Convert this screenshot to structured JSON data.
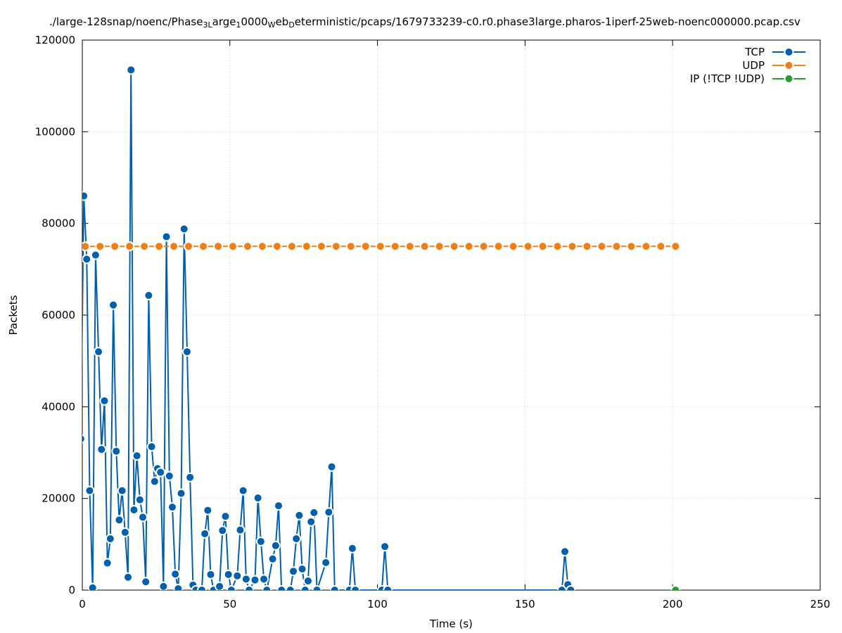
{
  "chart_data": {
    "type": "line",
    "title": {
      "segments": [
        {
          "t": "./large-128snap/noenc/Phase",
          "sub": false
        },
        {
          "t": "3L",
          "sub": true
        },
        {
          "t": "arge",
          "sub": false
        },
        {
          "t": "1",
          "sub": true
        },
        {
          "t": "0000",
          "sub": false
        },
        {
          "t": "W",
          "sub": true
        },
        {
          "t": "eb",
          "sub": false
        },
        {
          "t": "D",
          "sub": true
        },
        {
          "t": "eterministic/pcaps/1679733239-c0.r0.phase3large.pharos-1iperf-25web-noenc000000.pcap.csv",
          "sub": false
        }
      ]
    },
    "xlabel": "Time (s)",
    "ylabel": "Packets",
    "xlim": [
      0,
      250
    ],
    "ylim": [
      0,
      120000
    ],
    "xticks": [
      "0",
      "50",
      "100",
      "150",
      "200",
      "250"
    ],
    "yticks": [
      "0",
      "20000",
      "40000",
      "60000",
      "80000",
      "100000",
      "120000"
    ],
    "grid": true,
    "legend_position": "top-right",
    "series": [
      {
        "name": "TCP",
        "color": "#0060ad",
        "points": [
          [
            -0.5,
            33000
          ],
          [
            0.5,
            86000
          ],
          [
            1.5,
            72200
          ],
          [
            2.5,
            21700
          ],
          [
            3.5,
            500
          ],
          [
            4.5,
            73100
          ],
          [
            5.5,
            52000
          ],
          [
            6.5,
            30700
          ],
          [
            7.5,
            41300
          ],
          [
            8.5,
            5900
          ],
          [
            9.5,
            11200
          ],
          [
            10.5,
            62200
          ],
          [
            11.5,
            30300
          ],
          [
            12.5,
            15300
          ],
          [
            13.5,
            21700
          ],
          [
            14.5,
            12600
          ],
          [
            15.5,
            2800
          ],
          [
            16.5,
            113500
          ],
          [
            17.5,
            17500
          ],
          [
            18.5,
            29300
          ],
          [
            19.5,
            19700
          ],
          [
            20.5,
            15900
          ],
          [
            21.5,
            1800
          ],
          [
            22.5,
            64300
          ],
          [
            23.5,
            31300
          ],
          [
            24.5,
            23700
          ],
          [
            25.5,
            26500
          ],
          [
            26.5,
            25700
          ],
          [
            27.5,
            800
          ],
          [
            28.5,
            77100
          ],
          [
            29.5,
            24900
          ],
          [
            30.5,
            18100
          ],
          [
            31.5,
            3500
          ],
          [
            32.5,
            300
          ],
          [
            33.5,
            21100
          ],
          [
            34.5,
            78800
          ],
          [
            35.5,
            52000
          ],
          [
            36.5,
            24600
          ],
          [
            37.5,
            1100
          ],
          [
            38.5,
            0
          ],
          [
            40.5,
            0
          ],
          [
            41.5,
            12300
          ],
          [
            42.5,
            17400
          ],
          [
            43.5,
            3400
          ],
          [
            44.5,
            0
          ],
          [
            46.5,
            800
          ],
          [
            47.5,
            13000
          ],
          [
            48.5,
            16100
          ],
          [
            49.5,
            3400
          ],
          [
            50.5,
            0
          ],
          [
            52.5,
            3100
          ],
          [
            53.5,
            13100
          ],
          [
            54.5,
            21700
          ],
          [
            55.5,
            2400
          ],
          [
            56.5,
            0
          ],
          [
            58.5,
            2200
          ],
          [
            59.5,
            20100
          ],
          [
            60.5,
            10600
          ],
          [
            61.5,
            2400
          ],
          [
            62.5,
            0
          ],
          [
            64.5,
            6800
          ],
          [
            65.5,
            9700
          ],
          [
            66.5,
            18400
          ],
          [
            67.5,
            0
          ],
          [
            70.5,
            0
          ],
          [
            71.5,
            4100
          ],
          [
            72.5,
            11200
          ],
          [
            73.5,
            16300
          ],
          [
            74.5,
            4600
          ],
          [
            75.5,
            0
          ],
          [
            76.5,
            2000
          ],
          [
            77.5,
            14900
          ],
          [
            78.5,
            16900
          ],
          [
            79.5,
            0
          ],
          [
            82.5,
            6000
          ],
          [
            83.5,
            17000
          ],
          [
            84.5,
            26900
          ],
          [
            85.5,
            0
          ],
          [
            90.5,
            0
          ],
          [
            91.5,
            9100
          ],
          [
            92.5,
            0
          ],
          [
            101.5,
            0
          ],
          [
            102.5,
            9500
          ],
          [
            103.5,
            0
          ],
          [
            162.5,
            0
          ],
          [
            163.5,
            8400
          ],
          [
            164.5,
            1200
          ],
          [
            165.5,
            0
          ]
        ]
      },
      {
        "name": "UDP",
        "color": "#f07f15",
        "points": [
          [
            1,
            75000
          ],
          [
            6,
            75000
          ],
          [
            11,
            75000
          ],
          [
            16,
            75000
          ],
          [
            21,
            75000
          ],
          [
            26,
            75000
          ],
          [
            31,
            75000
          ],
          [
            36,
            75000
          ],
          [
            41,
            75000
          ],
          [
            46,
            75000
          ],
          [
            51,
            75000
          ],
          [
            56,
            75000
          ],
          [
            61,
            75000
          ],
          [
            66,
            75000
          ],
          [
            71,
            75000
          ],
          [
            76,
            75000
          ],
          [
            81,
            75000
          ],
          [
            86,
            75000
          ],
          [
            91,
            75000
          ],
          [
            96,
            75000
          ],
          [
            101,
            75000
          ],
          [
            106,
            75000
          ],
          [
            111,
            75000
          ],
          [
            116,
            75000
          ],
          [
            121,
            75000
          ],
          [
            126,
            75000
          ],
          [
            131,
            75000
          ],
          [
            136,
            75000
          ],
          [
            141,
            75000
          ],
          [
            146,
            75000
          ],
          [
            151,
            75000
          ],
          [
            156,
            75000
          ],
          [
            161,
            75000
          ],
          [
            166,
            75000
          ],
          [
            171,
            75000
          ],
          [
            176,
            75000
          ],
          [
            181,
            75000
          ],
          [
            186,
            75000
          ],
          [
            191,
            75000
          ],
          [
            196,
            75000
          ],
          [
            201,
            75000
          ]
        ]
      },
      {
        "name": "IP (!TCP  !UDP)",
        "color": "#2a9a35",
        "points": [
          [
            201,
            0
          ]
        ]
      }
    ]
  }
}
